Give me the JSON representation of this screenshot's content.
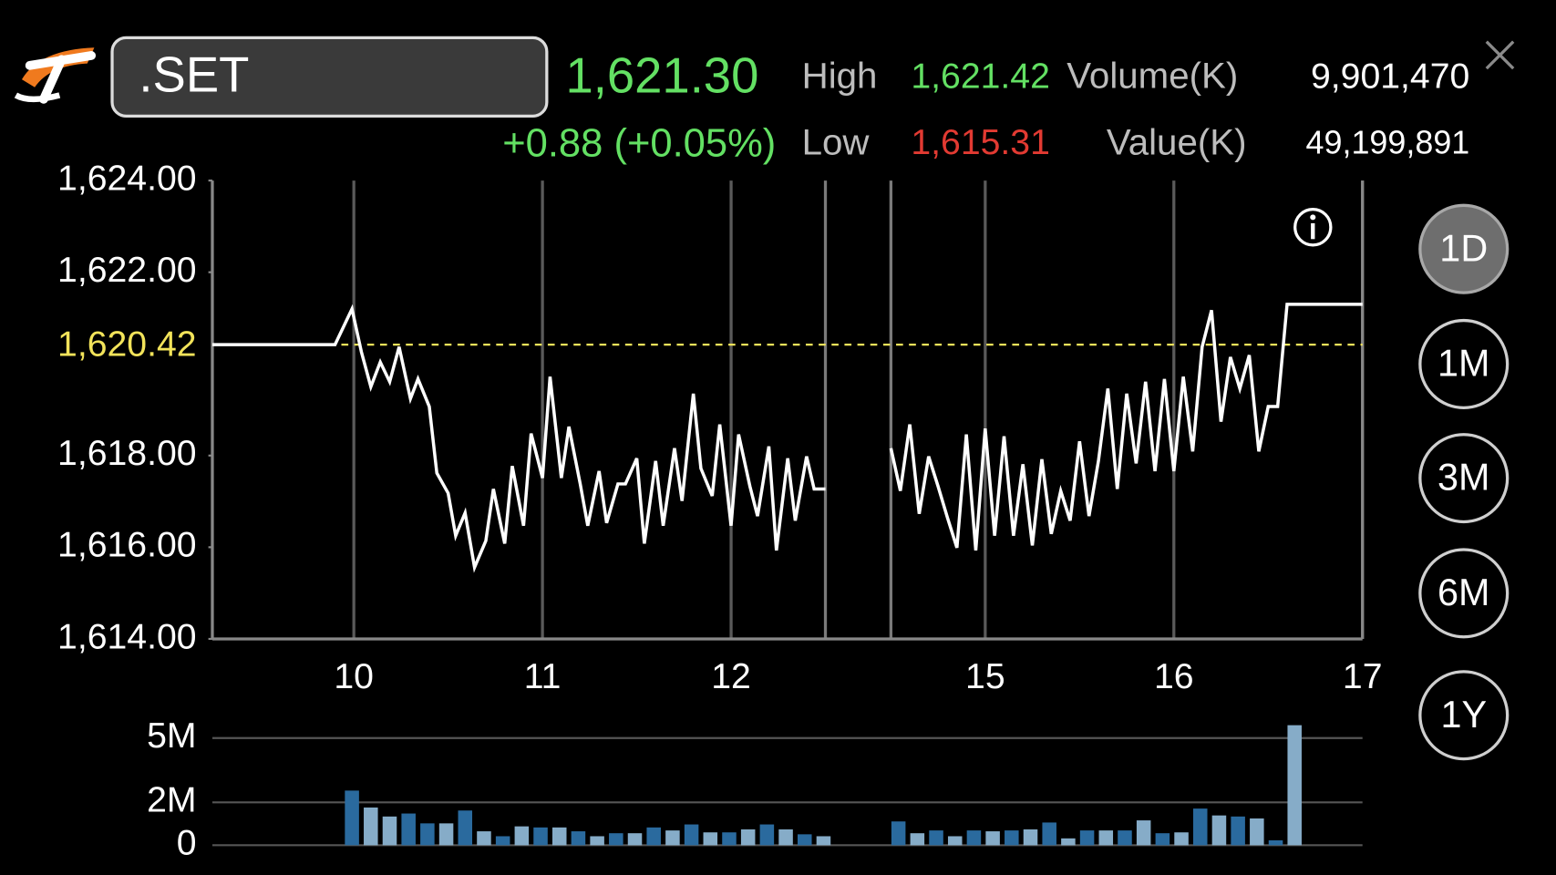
{
  "header": {
    "symbol": ".SET",
    "last": "1,621.30",
    "change": "+0.88 (+0.05%)",
    "high_label": "High",
    "high": "1,621.42",
    "low_label": "Low",
    "low": "1,615.31",
    "volume_label": "Volume(K)",
    "volume": "9,901,470",
    "value_label": "Value(K)",
    "value": "49,199,891"
  },
  "periods": [
    "1D",
    "1M",
    "3M",
    "6M",
    "1Y"
  ],
  "selected_period": "1D",
  "chart_data": [
    {
      "type": "line",
      "color": "#ffffff",
      "xlim": [
        9.25,
        17
      ],
      "breaks": [
        [
          12.5,
          14.5
        ]
      ],
      "xticks": [
        10,
        11,
        12,
        15,
        16,
        17
      ],
      "ylim": [
        1614,
        1624
      ],
      "yticks": [
        {
          "value": 1614,
          "label": "1,614.00"
        },
        {
          "value": 1616,
          "label": "1,616.00"
        },
        {
          "value": 1618,
          "label": "1,618.00"
        },
        {
          "value": 1622,
          "label": "1,622.00"
        },
        {
          "value": 1624,
          "label": "1,624.00"
        }
      ],
      "reference": {
        "value": 1620.42,
        "label": "1,620.42",
        "color": "#f2e35a"
      },
      "x": [
        9.25,
        9.9,
        9.99,
        10.04,
        10.09,
        10.14,
        10.19,
        10.24,
        10.3,
        10.34,
        10.4,
        10.44,
        10.5,
        10.54,
        10.59,
        10.64,
        10.7,
        10.74,
        10.8,
        10.84,
        10.9,
        10.94,
        11.0,
        11.04,
        11.1,
        11.14,
        11.2,
        11.24,
        11.3,
        11.34,
        11.4,
        11.44,
        11.5,
        11.54,
        11.6,
        11.64,
        11.7,
        11.74,
        11.8,
        11.84,
        11.9,
        11.94,
        12.0,
        12.04,
        12.1,
        12.14,
        12.2,
        12.24,
        12.3,
        12.34,
        12.4,
        12.44,
        12.5,
        null,
        14.5,
        14.55,
        14.6,
        14.65,
        14.7,
        14.75,
        14.8,
        14.85,
        14.9,
        14.95,
        15.0,
        15.05,
        15.1,
        15.15,
        15.2,
        15.25,
        15.3,
        15.35,
        15.4,
        15.45,
        15.5,
        15.55,
        15.6,
        15.65,
        15.7,
        15.75,
        15.8,
        15.85,
        15.9,
        15.95,
        16.0,
        16.05,
        16.1,
        16.15,
        16.2,
        16.25,
        16.3,
        16.35,
        16.4,
        16.45,
        16.5,
        16.55,
        16.6,
        17.0
      ],
      "values": [
        1620.42,
        1620.42,
        1621.2,
        1620.26,
        1619.5,
        1620.04,
        1619.61,
        1620.37,
        1619.24,
        1619.67,
        1619.07,
        1617.62,
        1617.18,
        1616.25,
        1616.75,
        1615.56,
        1616.14,
        1617.27,
        1616.08,
        1617.77,
        1616.47,
        1618.48,
        1617.51,
        1619.72,
        1617.51,
        1618.63,
        1617.38,
        1616.47,
        1617.66,
        1616.53,
        1617.38,
        1617.38,
        1617.94,
        1616.08,
        1617.88,
        1616.47,
        1618.16,
        1617.01,
        1619.35,
        1617.72,
        1617.12,
        1618.68,
        1616.47,
        1618.46,
        1617.33,
        1616.68,
        1618.2,
        1615.93,
        1617.94,
        1616.58,
        1617.98,
        1617.27,
        1617.27,
        null,
        1618.16,
        1617.23,
        1618.68,
        1616.73,
        1617.98,
        1617.33,
        1616.64,
        1615.99,
        1618.46,
        1615.93,
        1618.59,
        1616.25,
        1618.42,
        1616.25,
        1617.81,
        1616.04,
        1617.92,
        1616.29,
        1617.23,
        1616.58,
        1618.31,
        1616.68,
        1617.88,
        1619.46,
        1617.27,
        1619.35,
        1617.83,
        1619.61,
        1617.66,
        1619.67,
        1617.66,
        1619.72,
        1618.09,
        1620.37,
        1621.17,
        1618.74,
        1620.15,
        1619.46,
        1620.19,
        1618.09,
        1619.07,
        1619.07,
        1621.3,
        1621.3
      ]
    },
    {
      "type": "bar",
      "ylim": [
        0,
        5600000
      ],
      "yticks": [
        {
          "value": 0,
          "label": "0"
        },
        {
          "value": 2000000,
          "label": "2M"
        },
        {
          "value": 5000000,
          "label": "5M"
        }
      ],
      "x": [
        9.99,
        10.09,
        10.19,
        10.29,
        10.39,
        10.49,
        10.59,
        10.69,
        10.79,
        10.89,
        10.99,
        11.09,
        11.19,
        11.29,
        11.39,
        11.49,
        11.59,
        11.69,
        11.79,
        11.89,
        11.99,
        12.09,
        12.19,
        12.29,
        12.39,
        12.49,
        14.54,
        14.64,
        14.74,
        14.84,
        14.94,
        15.04,
        15.14,
        15.24,
        15.34,
        15.44,
        15.54,
        15.64,
        15.74,
        15.84,
        15.94,
        16.04,
        16.14,
        16.24,
        16.34,
        16.44,
        16.54,
        16.64
      ],
      "values": [
        2550000,
        1760000,
        1340000,
        1480000,
        1020000,
        1020000,
        1620000,
        650000,
        420000,
        880000,
        830000,
        830000,
        650000,
        420000,
        560000,
        560000,
        830000,
        690000,
        970000,
        600000,
        600000,
        740000,
        970000,
        740000,
        510000,
        420000,
        1110000,
        560000,
        690000,
        420000,
        690000,
        650000,
        690000,
        740000,
        1060000,
        320000,
        690000,
        690000,
        690000,
        1160000,
        560000,
        600000,
        1710000,
        1390000,
        1340000,
        1250000,
        230000,
        5600000
      ],
      "colors": [
        "#2a6a9e",
        "#86acc8",
        "#86acc8",
        "#2a6a9e",
        "#2a6a9e",
        "#86acc8",
        "#2a6a9e",
        "#86acc8",
        "#2a6a9e",
        "#86acc8",
        "#2a6a9e",
        "#86acc8",
        "#2a6a9e",
        "#86acc8",
        "#2a6a9e",
        "#86acc8",
        "#2a6a9e",
        "#86acc8",
        "#2a6a9e",
        "#86acc8",
        "#2a6a9e",
        "#86acc8",
        "#2a6a9e",
        "#86acc8",
        "#2a6a9e",
        "#86acc8",
        "#2a6a9e",
        "#86acc8",
        "#2a6a9e",
        "#86acc8",
        "#2a6a9e",
        "#86acc8",
        "#2a6a9e",
        "#86acc8",
        "#2a6a9e",
        "#86acc8",
        "#2a6a9e",
        "#86acc8",
        "#2a6a9e",
        "#86acc8",
        "#2a6a9e",
        "#86acc8",
        "#2a6a9e",
        "#86acc8",
        "#2a6a9e",
        "#86acc8",
        "#2a6a9e",
        "#86acc8"
      ]
    }
  ]
}
